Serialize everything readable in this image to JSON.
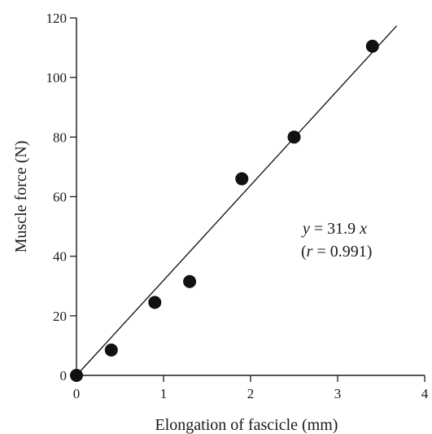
{
  "chart_data": {
    "type": "scatter",
    "xlabel": "Elongation of fascicle (mm)",
    "ylabel": "Muscle force (N)",
    "xlim": [
      0,
      4
    ],
    "ylim": [
      0,
      120
    ],
    "x_ticks": [
      0,
      1,
      2,
      3,
      4
    ],
    "y_ticks": [
      0,
      20,
      40,
      60,
      80,
      100,
      120
    ],
    "grid": false,
    "series": [
      {
        "points": [
          {
            "x": 0,
            "y": 0
          },
          {
            "x": 0.4,
            "y": 8.5
          },
          {
            "x": 0.9,
            "y": 24.5
          },
          {
            "x": 1.3,
            "y": 31.5
          },
          {
            "x": 1.9,
            "y": 66
          },
          {
            "x": 2.5,
            "y": 80
          },
          {
            "x": 3.4,
            "y": 110.5
          }
        ]
      }
    ],
    "fit_line": {
      "slope": 31.9,
      "intercept": 0,
      "x_range": [
        0,
        3.68
      ]
    },
    "annotation": {
      "equation_line1_var": "y",
      "equation_line1_rest": " = 31.9 ",
      "equation_line1_var2": "x",
      "equation_line2_open": "(",
      "equation_line2_var": "r",
      "equation_line2_rest": " = 0.991)"
    },
    "colors": {
      "points": "#111111",
      "line": "#1a1a1a"
    }
  }
}
